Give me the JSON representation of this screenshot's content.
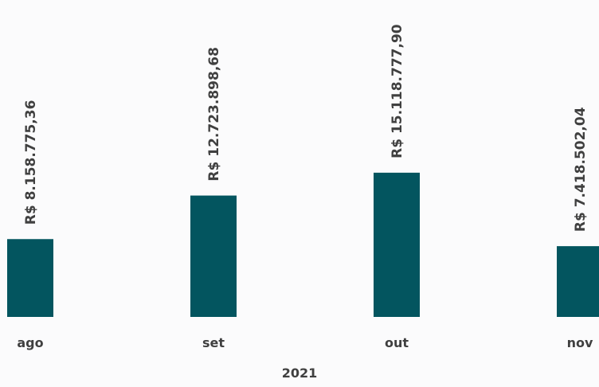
{
  "chart_data": {
    "type": "bar",
    "group_label": "2021",
    "categories": [
      "ago",
      "set",
      "out",
      "nov"
    ],
    "values": [
      8158775.36,
      12723898.68,
      15118777.9,
      7418502.04
    ],
    "data_labels": [
      "R$ 8.158.775,36",
      "R$ 12.723.898,68",
      "R$ 15.118.777,90",
      "R$ 7.418.502,04"
    ],
    "title": "",
    "xlabel": "",
    "ylabel": "",
    "ylim": [
      0,
      25000000
    ],
    "grid": false,
    "legend": "none",
    "bar_color": "#03555f",
    "background": "#fbfbfc"
  }
}
